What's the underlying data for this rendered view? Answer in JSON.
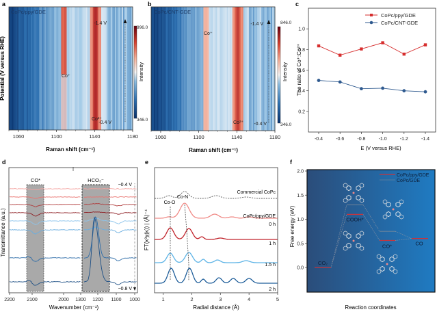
{
  "chart_data": [
    {
      "panel": "a",
      "type": "heatmap",
      "label": "CoPc/ppy/GDE",
      "xlabel": "Raman shift (cm⁻¹)",
      "ylabel": "Potential (V versus RHE)",
      "xlim": [
        1050,
        1180
      ],
      "xticks": [
        "1060",
        "1100",
        "1140",
        "1180"
      ],
      "xtick_values": [
        1060,
        1100,
        1140,
        1180
      ],
      "colorbar": {
        "label": "Intensity",
        "max": "996.0",
        "min": "346.0"
      },
      "annotations": {
        "top_potential": "-1.4 V",
        "bottom_potential": "-0.4 V",
        "peak1": "Co⁺",
        "peak2": "Co²⁺"
      },
      "peaks": [
        1108,
        1141
      ]
    },
    {
      "panel": "b",
      "type": "heatmap",
      "label": "CoPc/CNT-GDE",
      "xlabel": "Raman shift (cm⁻¹)",
      "xlim": [
        1050,
        1180
      ],
      "xticks": [
        "1060",
        "1100",
        "1140",
        "1180"
      ],
      "xtick_values": [
        1060,
        1100,
        1140,
        1180
      ],
      "colorbar": {
        "label": "Intensity",
        "max": "846.0",
        "min": "346.0"
      },
      "annotations": {
        "top_potential": "-1.4 V",
        "bottom_potential": "-0.4 V",
        "peak1": "Co⁺",
        "peak2": "Co²⁺"
      },
      "peaks": [
        1108,
        1141
      ]
    },
    {
      "panel": "c",
      "type": "line",
      "xlabel": "E (V versus RHE)",
      "ylabel": "The ratio of Co⁺:Co²⁺",
      "categories": [
        "-0.4",
        "-0.6",
        "-0.8",
        "-1.0",
        "-1.2",
        "-1.4"
      ],
      "ylim": [
        0.0,
        1.2
      ],
      "yticks": [
        "0.2",
        "0.4",
        "0.6",
        "0.8",
        "1.0"
      ],
      "ytick_values": [
        0.2,
        0.4,
        0.6,
        0.8,
        1.0
      ],
      "legend": "top-right",
      "series": [
        {
          "name": "CoPc/ppy/GDE",
          "color": "#d62d2d",
          "marker": "square",
          "values": [
            0.835,
            0.745,
            0.805,
            0.865,
            0.755,
            0.845
          ]
        },
        {
          "name": "CoPc/CNT-GDE",
          "color": "#2f5a8f",
          "marker": "circle",
          "values": [
            0.5,
            0.485,
            0.42,
            0.425,
            0.4,
            0.39
          ]
        }
      ]
    },
    {
      "panel": "d",
      "type": "line",
      "xlabel": "Wavenumber (cm⁻¹)",
      "ylabel": "Transmittance (a.u.)",
      "xticks_left": [
        "2200",
        "2100",
        "2000"
      ],
      "xticks_right": [
        "1300",
        "1200",
        "1100",
        "1000"
      ],
      "bands": [
        "CO*",
        "HCO₃⁻"
      ],
      "annotations": {
        "top": "−0.4 V",
        "bottom": "−0.8 V"
      },
      "series_colors": [
        "#f4a3a0",
        "#e9736f",
        "#b03a3a",
        "#8e1f24",
        "#8cc4ec",
        "#6aaee0",
        "#2d6ca8",
        "#1d4f85"
      ]
    },
    {
      "panel": "e",
      "type": "line",
      "xlabel": "Radial distance (Å)",
      "ylabel": "FT(κ³χ(κ)) | (Å)⁻⁴",
      "xlim": [
        0.7,
        5
      ],
      "xticks": [
        "1",
        "2",
        "3",
        "4",
        "5"
      ],
      "xtick_values": [
        1,
        2,
        3,
        4,
        5
      ],
      "annotations": {
        "coo": "Co-O",
        "con": "Co-N",
        "sample": "CoPc/ppy/GDE"
      },
      "series": [
        {
          "name": "Commercial CoPc",
          "color": "#555555",
          "dashed": true
        },
        {
          "name": "0 h",
          "color": "#f08a86"
        },
        {
          "name": "1 h",
          "color": "#c0222a"
        },
        {
          "name": "1.5 h",
          "color": "#5cb3e6"
        },
        {
          "name": "2 h",
          "color": "#1f5e9a"
        }
      ]
    },
    {
      "panel": "f",
      "type": "line",
      "xlabel": "Reaction coordinates",
      "ylabel": "Free energy (eV)",
      "ylim": [
        -0.5,
        2.0
      ],
      "yticks": [
        "0.0",
        "0.5",
        "1.0",
        "1.5",
        "2.0"
      ],
      "ytick_values": [
        0.0,
        0.5,
        1.0,
        1.5,
        2.0
      ],
      "states": [
        "CO₂",
        "COOH*",
        "CO*",
        "CO"
      ],
      "legend": "top-right",
      "series": [
        {
          "name": "CoPc/ppy/GDE",
          "color": "#c8343c",
          "values": [
            0.0,
            1.1,
            0.56,
            0.6
          ]
        },
        {
          "name": "CoPc/GDE",
          "color": "#8a8f99",
          "values": [
            0.0,
            1.3,
            0.75,
            0.6
          ]
        }
      ]
    }
  ],
  "panel_letters": [
    "a",
    "b",
    "c",
    "d",
    "e",
    "f"
  ]
}
